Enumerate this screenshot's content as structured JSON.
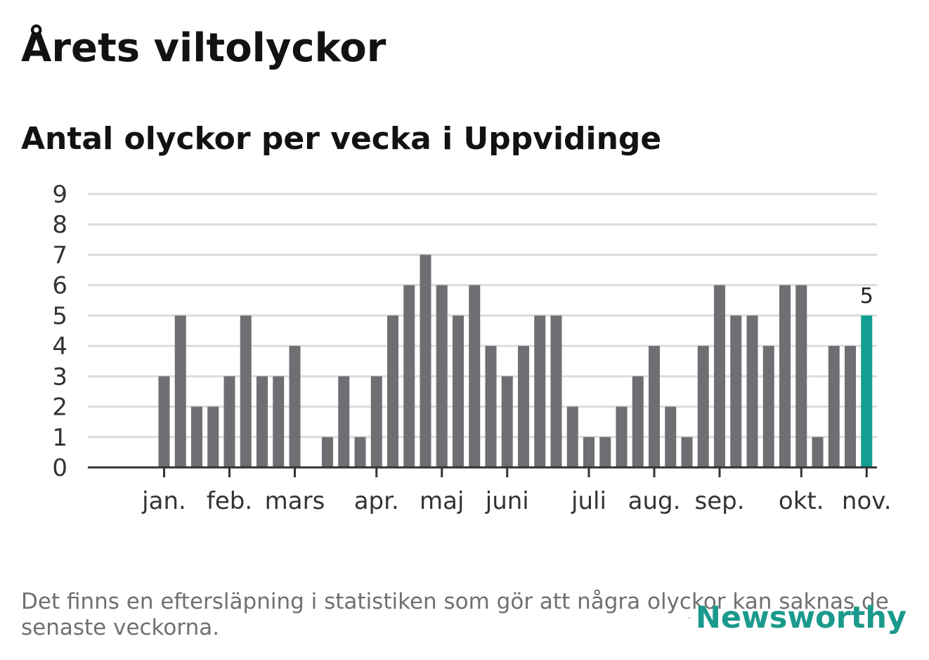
{
  "header": {
    "title": "Årets viltolyckor",
    "subtitle": "Antal olyckor per vecka i Uppvidinge"
  },
  "footer": {
    "note": "Det finns en eftersläpning i statistiken som gör att några olyckor kan saknas de senaste veckorna.",
    "logo_text": "Newsworthy"
  },
  "colors": {
    "bar": "#6e6e73",
    "highlight": "#139e92",
    "grid": "#dcdcdc",
    "axis": "#333333",
    "text": "#333333"
  },
  "chart_data": {
    "type": "bar",
    "title": "Antal olyckor per vecka i Uppvidinge",
    "xlabel": "",
    "ylabel": "",
    "ylim": [
      0,
      9
    ],
    "yticks": [
      0,
      1,
      2,
      3,
      4,
      5,
      6,
      7,
      8,
      9
    ],
    "grid": true,
    "values": [
      0,
      0,
      3,
      5,
      2,
      2,
      3,
      5,
      3,
      3,
      4,
      0,
      1,
      3,
      1,
      3,
      5,
      6,
      7,
      6,
      5,
      6,
      4,
      3,
      4,
      5,
      5,
      2,
      1,
      1,
      2,
      3,
      4,
      2,
      1,
      4,
      6,
      5,
      5,
      4,
      6,
      6,
      1,
      4,
      4,
      5
    ],
    "highlight_index": 45,
    "highlight_label": "5",
    "month_ticks": [
      {
        "label": "jan.",
        "index": 2.5
      },
      {
        "label": "feb.",
        "index": 6.5
      },
      {
        "label": "mars",
        "index": 10.5
      },
      {
        "label": "apr.",
        "index": 15.5
      },
      {
        "label": "maj",
        "index": 19.5
      },
      {
        "label": "juni",
        "index": 23.5
      },
      {
        "label": "juli",
        "index": 28.5
      },
      {
        "label": "aug.",
        "index": 32.5
      },
      {
        "label": "sep.",
        "index": 36.5
      },
      {
        "label": "okt.",
        "index": 41.5
      },
      {
        "label": "nov.",
        "index": 45.5
      }
    ]
  }
}
